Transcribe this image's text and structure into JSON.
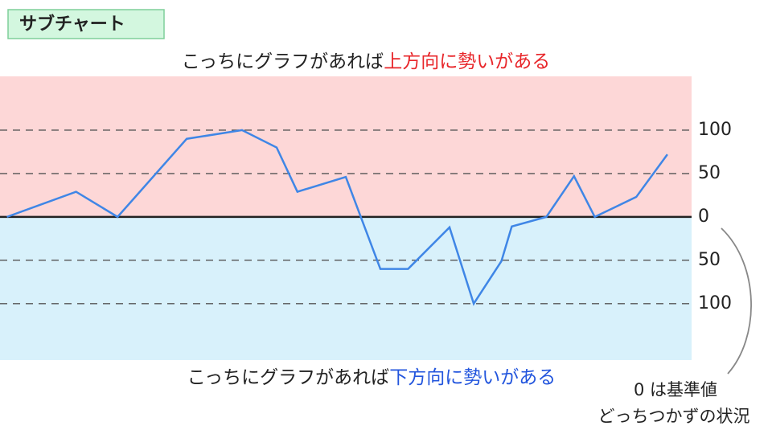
{
  "header": {
    "badge": "サブチャート"
  },
  "captions": {
    "top": [
      "こっちにグラフがあれば",
      "上方向に勢いがある"
    ],
    "bottom": [
      "こっちにグラフがあれば",
      "下方向に勢いがある"
    ],
    "note": [
      "0 は基準値",
      "どっちつかずの状況"
    ]
  },
  "chart_data": {
    "type": "line",
    "x": [
      1,
      11,
      17,
      27,
      35,
      40,
      43,
      50,
      55,
      59,
      65,
      68.5,
      72.5,
      74,
      79,
      83,
      86,
      92,
      96.5
    ],
    "series": [
      {
        "color": "#3f86e6",
        "values": [
          0,
          29,
          0,
          90,
          100,
          80,
          29,
          46,
          -60,
          -60,
          -12,
          -100,
          -51,
          -11,
          0,
          47,
          0,
          23,
          72
        ]
      }
    ],
    "xlim": [
      0,
      100
    ],
    "ylim": [
      -165,
      162
    ],
    "yticks": [
      100,
      50,
      0,
      {
        "value": -50,
        "label": "50"
      },
      {
        "value": -100,
        "label": "100"
      }
    ],
    "zone_colors": {
      "positive": "#fdd7d7",
      "negative": "#d8f1fb"
    },
    "grid": true
  }
}
